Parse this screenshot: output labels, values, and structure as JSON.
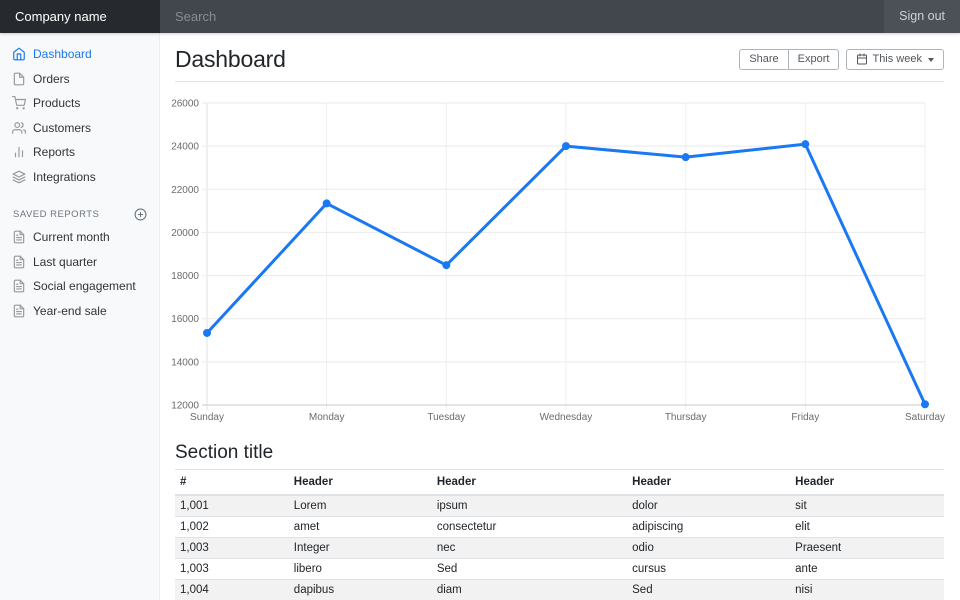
{
  "colors": {
    "accent": "#1a78f2",
    "navbar_brand_bg": "#26292e",
    "search_bg": "#42474d",
    "signout_bg": "#4c5157",
    "sidebar_bg": "#f8f9fa",
    "table_stripe": "#f2f2f2",
    "border": "#dee2e6"
  },
  "navbar": {
    "brand": "Company name",
    "search_placeholder": "Search",
    "sign_out_label": "Sign out"
  },
  "sidebar": {
    "items": [
      {
        "label": "Dashboard",
        "icon": "home",
        "active": true
      },
      {
        "label": "Orders",
        "icon": "file",
        "active": false
      },
      {
        "label": "Products",
        "icon": "shopping-cart",
        "active": false
      },
      {
        "label": "Customers",
        "icon": "users",
        "active": false
      },
      {
        "label": "Reports",
        "icon": "bar-chart",
        "active": false
      },
      {
        "label": "Integrations",
        "icon": "layers",
        "active": false
      }
    ],
    "saved_reports": {
      "heading": "Saved reports",
      "add_icon": "plus-circle",
      "items": [
        {
          "label": "Current month",
          "icon": "file-text"
        },
        {
          "label": "Last quarter",
          "icon": "file-text"
        },
        {
          "label": "Social engagement",
          "icon": "file-text"
        },
        {
          "label": "Year-end sale",
          "icon": "file-text"
        }
      ]
    }
  },
  "page_header": {
    "title": "Dashboard",
    "share_label": "Share",
    "export_label": "Export",
    "period_label": "This week",
    "period_icon": "calendar"
  },
  "chart_data": {
    "type": "line",
    "title": "",
    "xlabel": "",
    "ylabel": "",
    "x": [
      "Sunday",
      "Monday",
      "Tuesday",
      "Wednesday",
      "Thursday",
      "Friday",
      "Saturday"
    ],
    "values": [
      15339,
      21345,
      18483,
      24003,
      23489,
      24092,
      12034
    ],
    "ylim": [
      12000,
      26000
    ],
    "yticks": [
      12000,
      14000,
      16000,
      18000,
      20000,
      22000,
      24000,
      26000
    ],
    "grid": true,
    "legend": "none",
    "line_color": "#1a78f2",
    "point_color": "#1a78f2",
    "line_width": 3,
    "point_radius": 4
  },
  "section": {
    "title": "Section title",
    "table": {
      "columns": [
        "#",
        "Header",
        "Header",
        "Header",
        "Header"
      ],
      "rows": [
        [
          "1,001",
          "Lorem",
          "ipsum",
          "dolor",
          "sit"
        ],
        [
          "1,002",
          "amet",
          "consectetur",
          "adipiscing",
          "elit"
        ],
        [
          "1,003",
          "Integer",
          "nec",
          "odio",
          "Praesent"
        ],
        [
          "1,003",
          "libero",
          "Sed",
          "cursus",
          "ante"
        ],
        [
          "1,004",
          "dapibus",
          "diam",
          "Sed",
          "nisi"
        ]
      ]
    }
  }
}
